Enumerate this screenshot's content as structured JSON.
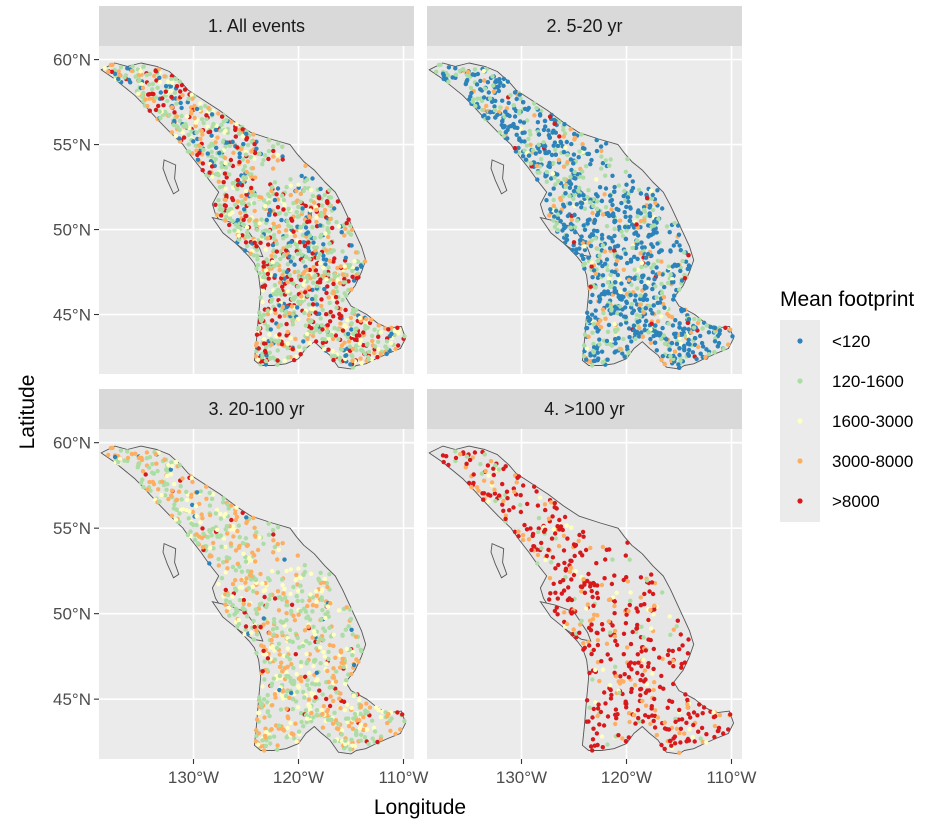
{
  "chart_data": {
    "type": "scatter",
    "xlabel": "Longitude",
    "ylabel": "Latitude",
    "xlim": [
      -139,
      -109
    ],
    "ylim": [
      41.5,
      60.8
    ],
    "x_ticks": [
      {
        "value": -130,
        "label": "130°W"
      },
      {
        "value": -120,
        "label": "120°W"
      },
      {
        "value": -110,
        "label": "110°W"
      }
    ],
    "y_ticks": [
      {
        "value": 45,
        "label": "45°N"
      },
      {
        "value": 50,
        "label": "50°N"
      },
      {
        "value": 55,
        "label": "55°N"
      },
      {
        "value": 60,
        "label": "60°N"
      }
    ],
    "grid": true,
    "legend": {
      "title": "Mean footprint",
      "position": "right",
      "items": [
        {
          "label": "<120",
          "color": "#2b83ba"
        },
        {
          "label": "120-1600",
          "color": "#abdda4"
        },
        {
          "label": "1600-3000",
          "color": "#ffffbf"
        },
        {
          "label": "3000-8000",
          "color": "#fdae61"
        },
        {
          "label": ">8000",
          "color": "#d7191c"
        }
      ]
    },
    "panels": [
      {
        "title": "1. All events",
        "class_mix": [
          0.12,
          0.38,
          0.1,
          0.18,
          0.22
        ],
        "n_points": 1500
      },
      {
        "title": "2. 5-20 yr",
        "class_mix": [
          0.58,
          0.26,
          0.04,
          0.1,
          0.02
        ],
        "n_points": 1400
      },
      {
        "title": "3. 20-100 yr",
        "class_mix": [
          0.02,
          0.4,
          0.2,
          0.33,
          0.05
        ],
        "n_points": 1000
      },
      {
        "title": "4. >100 yr",
        "class_mix": [
          0.0,
          0.08,
          0.06,
          0.22,
          0.64
        ],
        "n_points": 600
      }
    ],
    "region_outline": [
      [
        -138.8,
        59.4
      ],
      [
        -137.5,
        59.8
      ],
      [
        -136.3,
        59.6
      ],
      [
        -135.0,
        59.8
      ],
      [
        -133.5,
        59.6
      ],
      [
        -132.3,
        59.3
      ],
      [
        -131.2,
        58.7
      ],
      [
        -130.5,
        58.2
      ],
      [
        -129.0,
        57.6
      ],
      [
        -127.5,
        57.0
      ],
      [
        -126.0,
        56.3
      ],
      [
        -124.5,
        55.7
      ],
      [
        -122.5,
        55.3
      ],
      [
        -120.8,
        55.0
      ],
      [
        -120.2,
        54.5
      ],
      [
        -119.5,
        54.0
      ],
      [
        -118.5,
        53.5
      ],
      [
        -117.5,
        52.8
      ],
      [
        -116.5,
        52.2
      ],
      [
        -115.8,
        51.4
      ],
      [
        -115.2,
        50.6
      ],
      [
        -114.6,
        49.8
      ],
      [
        -114.0,
        49.0
      ],
      [
        -113.6,
        48.2
      ],
      [
        -114.0,
        47.5
      ],
      [
        -114.6,
        46.7
      ],
      [
        -115.5,
        46.0
      ],
      [
        -115.0,
        45.5
      ],
      [
        -113.5,
        45.0
      ],
      [
        -112.5,
        44.5
      ],
      [
        -111.5,
        44.2
      ],
      [
        -110.2,
        44.3
      ],
      [
        -109.8,
        43.6
      ],
      [
        -110.3,
        43.0
      ],
      [
        -111.5,
        42.7
      ],
      [
        -112.6,
        42.4
      ],
      [
        -113.6,
        42.1
      ],
      [
        -114.5,
        42.0
      ],
      [
        -115.0,
        41.8
      ],
      [
        -116.2,
        41.9
      ],
      [
        -117.0,
        42.6
      ],
      [
        -117.8,
        43.0
      ],
      [
        -118.5,
        43.4
      ],
      [
        -119.3,
        43.0
      ],
      [
        -120.0,
        42.4
      ],
      [
        -121.2,
        42.1
      ],
      [
        -122.4,
        42.0
      ],
      [
        -123.6,
        42.0
      ],
      [
        -124.2,
        42.3
      ],
      [
        -124.0,
        43.5
      ],
      [
        -123.8,
        45.0
      ],
      [
        -123.6,
        46.3
      ],
      [
        -123.8,
        47.3
      ],
      [
        -124.2,
        48.0
      ],
      [
        -124.7,
        48.4
      ],
      [
        -125.5,
        48.9
      ],
      [
        -126.5,
        49.5
      ],
      [
        -127.2,
        50.2
      ],
      [
        -127.9,
        50.9
      ],
      [
        -128.2,
        51.5
      ],
      [
        -127.6,
        52.2
      ],
      [
        -128.5,
        52.9
      ],
      [
        -129.3,
        53.6
      ],
      [
        -130.2,
        54.3
      ],
      [
        -131.0,
        55.0
      ],
      [
        -132.2,
        55.7
      ],
      [
        -133.3,
        56.4
      ],
      [
        -134.5,
        57.2
      ],
      [
        -135.6,
        57.9
      ],
      [
        -136.6,
        58.4
      ],
      [
        -137.6,
        58.9
      ],
      [
        -138.8,
        59.4
      ]
    ],
    "islands": [
      [
        [
          -132.8,
          54.1
        ],
        [
          -131.7,
          53.8
        ],
        [
          -131.8,
          53.0
        ],
        [
          -131.4,
          52.3
        ],
        [
          -131.9,
          52.1
        ],
        [
          -132.5,
          52.9
        ],
        [
          -132.9,
          53.6
        ],
        [
          -132.8,
          54.1
        ]
      ],
      [
        [
          -128.2,
          50.7
        ],
        [
          -126.8,
          50.5
        ],
        [
          -125.0,
          50.1
        ],
        [
          -123.7,
          48.9
        ],
        [
          -123.4,
          48.4
        ],
        [
          -124.3,
          48.5
        ],
        [
          -125.6,
          49.0
        ],
        [
          -127.2,
          49.8
        ],
        [
          -128.2,
          50.7
        ]
      ]
    ]
  }
}
